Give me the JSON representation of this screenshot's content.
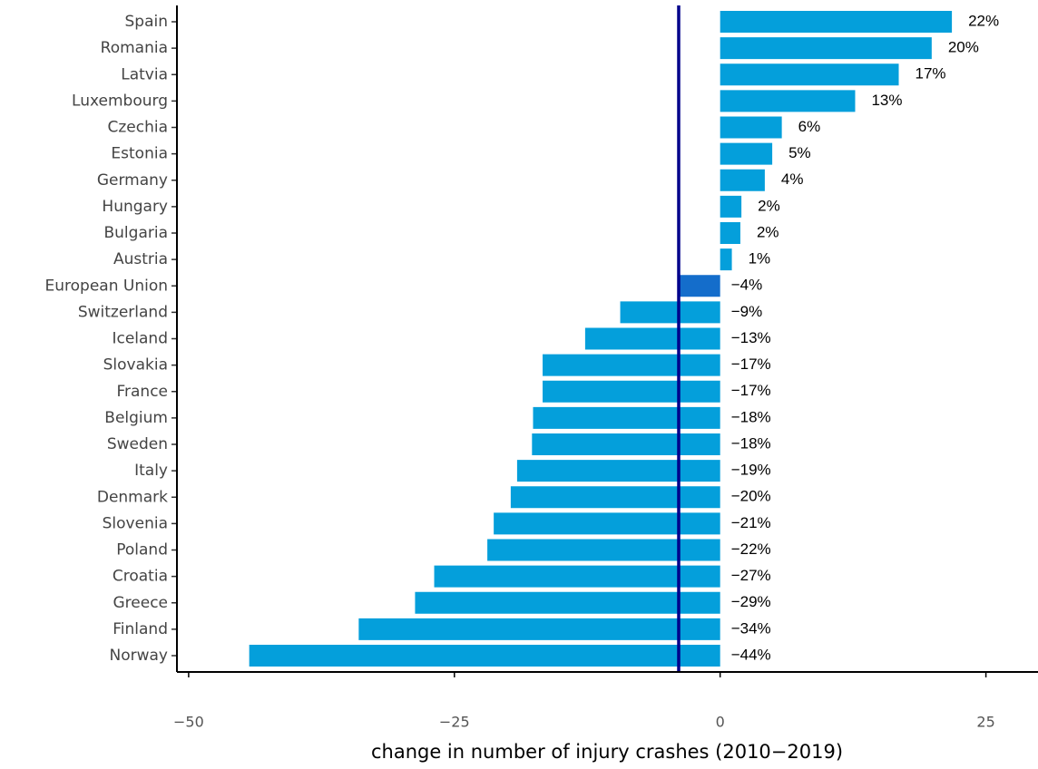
{
  "chart_data": {
    "type": "barh",
    "x_label": "change in number of injury crashes (2010−2019)",
    "categories": [
      "Spain",
      "Romania",
      "Latvia",
      "Luxembourg",
      "Czechia",
      "Estonia",
      "Germany",
      "Hungary",
      "Bulgaria",
      "Austria",
      "European Union",
      "Switzerland",
      "Iceland",
      "Slovakia",
      "France",
      "Belgium",
      "Sweden",
      "Italy",
      "Denmark",
      "Slovenia",
      "Poland",
      "Croatia",
      "Greece",
      "Finland",
      "Norway"
    ],
    "values": [
      21.8,
      19.9,
      16.8,
      12.7,
      5.8,
      4.9,
      4.2,
      2.0,
      1.9,
      1.1,
      -3.9,
      -9.4,
      -12.7,
      -16.7,
      -16.7,
      -17.6,
      -17.7,
      -19.1,
      -19.7,
      -21.3,
      -21.9,
      -26.9,
      -28.7,
      -34.0,
      -44.3
    ],
    "value_labels": [
      "22%",
      "20%",
      "17%",
      "13%",
      "6%",
      "5%",
      "4%",
      "2%",
      "2%",
      "1%",
      "−4%",
      "−9%",
      "−13%",
      "−17%",
      "−17%",
      "−18%",
      "−18%",
      "−19%",
      "−20%",
      "−21%",
      "−22%",
      "−27%",
      "−29%",
      "−34%",
      "−44%"
    ],
    "colors": [
      "#049fdb",
      "#049fdb",
      "#049fdb",
      "#049fdb",
      "#049fdb",
      "#049fdb",
      "#049fdb",
      "#049fdb",
      "#049fdb",
      "#049fdb",
      "#146dcb",
      "#049fdb",
      "#049fdb",
      "#049fdb",
      "#049fdb",
      "#049fdb",
      "#049fdb",
      "#049fdb",
      "#049fdb",
      "#049fdb",
      "#049fdb",
      "#049fdb",
      "#049fdb",
      "#049fdb",
      "#049fdb"
    ],
    "reference_line_color": "#00008b",
    "xlim": [
      -51.1,
      29.9
    ],
    "xticks": [
      {
        "value": -50,
        "label": "−50"
      },
      {
        "value": -25,
        "label": "−25"
      },
      0,
      25
    ]
  }
}
